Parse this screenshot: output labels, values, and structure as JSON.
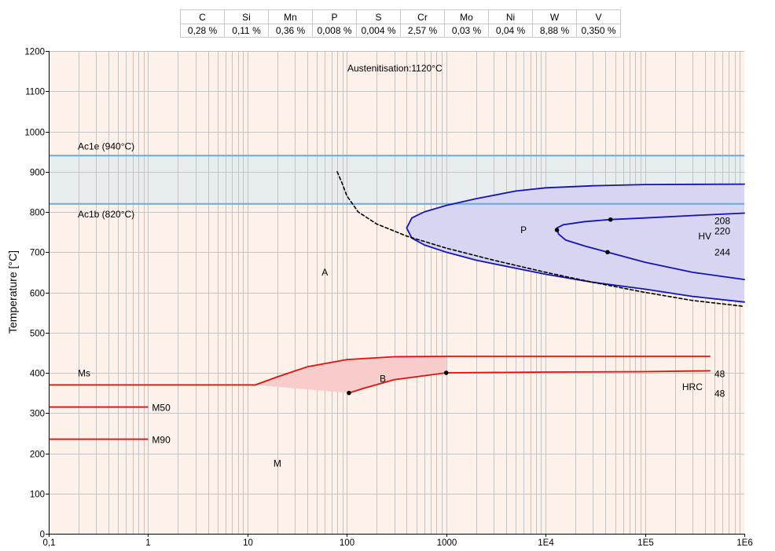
{
  "composition": [
    {
      "element": "C",
      "value": "0,28 %"
    },
    {
      "element": "Si",
      "value": "0,11 %"
    },
    {
      "element": "Mn",
      "value": "0,36 %"
    },
    {
      "element": "P",
      "value": "0,008 %"
    },
    {
      "element": "S",
      "value": "0,004 %"
    },
    {
      "element": "Cr",
      "value": "2,57 %"
    },
    {
      "element": "Mo",
      "value": "0,03 %"
    },
    {
      "element": "Ni",
      "value": "0,04 %"
    },
    {
      "element": "W",
      "value": "8,88 %"
    },
    {
      "element": "V",
      "value": "0,350 %"
    }
  ],
  "chart_data": {
    "type": "line",
    "title": "Austenitisation:1120°C",
    "xlabel": "",
    "ylabel": "Temperature [°C]",
    "xscale": "log",
    "xlim": [
      0.1,
      1000000
    ],
    "ylim": [
      0,
      1200
    ],
    "x_ticks": [
      {
        "v": 0.1,
        "label": "0,1"
      },
      {
        "v": 1,
        "label": "1"
      },
      {
        "v": 10,
        "label": "10"
      },
      {
        "v": 100,
        "label": "100"
      },
      {
        "v": 1000,
        "label": "1000"
      },
      {
        "v": 10000,
        "label": "1E4"
      },
      {
        "v": 100000,
        "label": "1E5"
      },
      {
        "v": 1000000,
        "label": "1E6"
      }
    ],
    "y_ticks": [
      0,
      100,
      200,
      300,
      400,
      500,
      600,
      700,
      800,
      900,
      1000,
      1100,
      1200
    ],
    "colors": {
      "background": "#fdf1ea",
      "grid": "#c4c4c4",
      "ac_band": "#e8edf0",
      "ac_line": "#6ea8e0",
      "pearlite": "#1414b4",
      "pearlite_fill": "#d7d5f2",
      "bainite": "#e01010",
      "bainite_fill": "#f7cccb",
      "martensite": "#e01010",
      "critical": "#000000"
    },
    "ac_lines": [
      {
        "name": "Ac1e",
        "temp": 940,
        "label": "Ac1e (940°C)"
      },
      {
        "name": "Ac1b",
        "temp": 820,
        "label": "Ac1b (820°C)"
      }
    ],
    "martensite_lines": [
      {
        "name": "Ms",
        "label": "Ms",
        "temp": 370,
        "x_end": 12
      },
      {
        "name": "M50",
        "label": "M50",
        "temp": 315,
        "x_end": 1
      },
      {
        "name": "M90",
        "label": "M90",
        "temp": 235,
        "x_end": 1
      }
    ],
    "curves": [
      {
        "name": "pearlite-start",
        "color": "pearlite",
        "points": [
          [
            400,
            760
          ],
          [
            450,
            735
          ],
          [
            600,
            718
          ],
          [
            1000,
            700
          ],
          [
            2000,
            680
          ],
          [
            5000,
            660
          ],
          [
            10000,
            645
          ],
          [
            30000,
            625
          ],
          [
            100000,
            608
          ],
          [
            300000,
            590
          ],
          [
            1000000,
            576
          ]
        ]
      },
      {
        "name": "pearlite-finish-upper",
        "color": "pearlite",
        "points": [
          [
            400,
            760
          ],
          [
            450,
            785
          ],
          [
            600,
            800
          ],
          [
            1000,
            816
          ],
          [
            2000,
            833
          ],
          [
            5000,
            852
          ],
          [
            10000,
            860
          ],
          [
            30000,
            865
          ],
          [
            100000,
            868
          ],
          [
            1000000,
            869
          ]
        ]
      },
      {
        "name": "pearlite-inner-upper",
        "color": "pearlite",
        "points": [
          [
            13000,
            760
          ],
          [
            15000,
            768
          ],
          [
            25000,
            776
          ],
          [
            45000,
            781
          ],
          [
            100000,
            785
          ],
          [
            300000,
            791
          ],
          [
            1000000,
            797
          ]
        ]
      },
      {
        "name": "pearlite-inner-lower",
        "color": "pearlite",
        "points": [
          [
            13000,
            760
          ],
          [
            13500,
            745
          ],
          [
            16000,
            730
          ],
          [
            25000,
            715
          ],
          [
            42000,
            700
          ],
          [
            100000,
            675
          ],
          [
            300000,
            650
          ],
          [
            1000000,
            632
          ]
        ]
      },
      {
        "name": "bainite-start",
        "color": "bainite",
        "points": [
          [
            12,
            370
          ],
          [
            20,
            390
          ],
          [
            40,
            415
          ],
          [
            100,
            433
          ],
          [
            300,
            440
          ],
          [
            1000,
            441
          ],
          [
            10000,
            441
          ],
          [
            100000,
            441
          ],
          [
            450000,
            441
          ]
        ]
      },
      {
        "name": "bainite-finish",
        "color": "bainite",
        "points": [
          [
            105,
            350
          ],
          [
            150,
            362
          ],
          [
            300,
            383
          ],
          [
            1000,
            400
          ],
          [
            10000,
            402
          ],
          [
            100000,
            403
          ],
          [
            450000,
            405
          ]
        ]
      },
      {
        "name": "critical-cooling",
        "color": "critical",
        "dashed": true,
        "points": [
          [
            80,
            900
          ],
          [
            90,
            870
          ],
          [
            100,
            840
          ],
          [
            130,
            800
          ],
          [
            200,
            770
          ],
          [
            400,
            740
          ],
          [
            1000,
            710
          ],
          [
            3000,
            680
          ],
          [
            10000,
            650
          ],
          [
            30000,
            625
          ],
          [
            100000,
            600
          ],
          [
            300000,
            580
          ],
          [
            1000000,
            565
          ]
        ]
      }
    ],
    "pearlite_region": [
      [
        400,
        760
      ],
      [
        450,
        785
      ],
      [
        600,
        800
      ],
      [
        1000,
        816
      ],
      [
        2000,
        833
      ],
      [
        5000,
        852
      ],
      [
        10000,
        860
      ],
      [
        30000,
        865
      ],
      [
        100000,
        868
      ],
      [
        1000000,
        869
      ],
      [
        1000000,
        632
      ],
      [
        300000,
        650
      ],
      [
        100000,
        675
      ],
      [
        42000,
        700
      ],
      [
        25000,
        715
      ],
      [
        16000,
        730
      ],
      [
        13500,
        745
      ],
      [
        13000,
        760
      ],
      [
        15000,
        768
      ],
      [
        25000,
        776
      ],
      [
        45000,
        781
      ],
      [
        100000,
        785
      ],
      [
        300000,
        791
      ],
      [
        1000000,
        797
      ],
      [
        1000000,
        576
      ],
      [
        300000,
        590
      ],
      [
        100000,
        608
      ],
      [
        30000,
        625
      ],
      [
        10000,
        645
      ],
      [
        5000,
        660
      ],
      [
        2000,
        680
      ],
      [
        1000,
        700
      ],
      [
        600,
        718
      ],
      [
        450,
        735
      ]
    ],
    "bainite_region": [
      [
        12,
        370
      ],
      [
        20,
        390
      ],
      [
        40,
        415
      ],
      [
        100,
        433
      ],
      [
        300,
        440
      ],
      [
        1000,
        441
      ],
      [
        1000,
        400
      ],
      [
        300,
        383
      ],
      [
        150,
        362
      ],
      [
        105,
        350
      ]
    ],
    "markers": [
      {
        "x": 13000,
        "y": 755
      },
      {
        "x": 45000,
        "y": 781
      },
      {
        "x": 42000,
        "y": 700
      },
      {
        "x": 105,
        "y": 350
      },
      {
        "x": 1000,
        "y": 400
      }
    ],
    "region_labels": [
      {
        "text": "A",
        "x": 60,
        "y": 650
      },
      {
        "text": "P",
        "x": 6000,
        "y": 755
      },
      {
        "text": "B",
        "x": 230,
        "y": 385
      },
      {
        "text": "M",
        "x": 20,
        "y": 175
      },
      {
        "text": "HV",
        "x": 400000,
        "y": 740
      },
      {
        "text": "HRC",
        "x": 300000,
        "y": 365
      }
    ],
    "hardness_labels": [
      {
        "text": "208",
        "y": 778
      },
      {
        "text": "220",
        "y": 752
      },
      {
        "text": "244",
        "y": 700
      },
      {
        "text": "48",
        "y": 397
      },
      {
        "text": "48",
        "y": 348
      }
    ]
  }
}
